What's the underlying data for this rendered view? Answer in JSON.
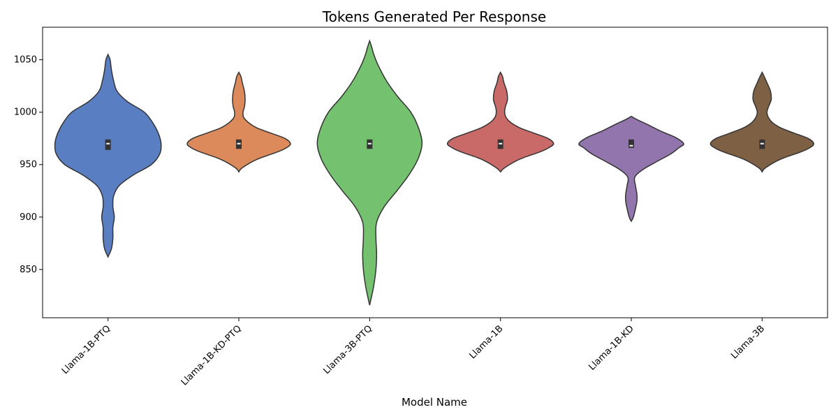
{
  "chart_data": {
    "type": "violin",
    "title": "Tokens Generated Per Response",
    "xlabel": "Model Name",
    "ylabel": "",
    "ylim": [
      804,
      1081
    ],
    "yticks": [
      850,
      900,
      950,
      1000,
      1050
    ],
    "categories": [
      "Llama-1B-PTQ",
      "Llama-1B-KD-PTQ",
      "Llama-3B-PTQ",
      "Llama-1B",
      "Llama-1B-KD",
      "Llama-3B"
    ],
    "colors": [
      "#5a7ec2",
      "#dc8a5c",
      "#74c26f",
      "#c96a69",
      "#9275ad",
      "#7e6045"
    ],
    "violins": [
      {
        "name": "Llama-1B-PTQ",
        "min": 862,
        "max": 1055,
        "box": [
          964,
          974
        ],
        "median": 970,
        "profile": [
          [
            862,
            0
          ],
          [
            870,
            5
          ],
          [
            880,
            7
          ],
          [
            890,
            7
          ],
          [
            900,
            9
          ],
          [
            910,
            7
          ],
          [
            920,
            8
          ],
          [
            930,
            16
          ],
          [
            940,
            36
          ],
          [
            950,
            62
          ],
          [
            960,
            74
          ],
          [
            970,
            76
          ],
          [
            980,
            72
          ],
          [
            990,
            64
          ],
          [
            1000,
            52
          ],
          [
            1010,
            28
          ],
          [
            1020,
            13
          ],
          [
            1030,
            8
          ],
          [
            1040,
            5
          ],
          [
            1050,
            3
          ],
          [
            1055,
            0
          ]
        ]
      },
      {
        "name": "Llama-1B-KD-PTQ",
        "min": 943,
        "max": 1038,
        "box": [
          965,
          974
        ],
        "median": 970,
        "profile": [
          [
            943,
            0
          ],
          [
            947,
            5
          ],
          [
            955,
            26
          ],
          [
            962,
            55
          ],
          [
            966,
            68
          ],
          [
            970,
            74
          ],
          [
            975,
            66
          ],
          [
            980,
            46
          ],
          [
            985,
            26
          ],
          [
            990,
            14
          ],
          [
            995,
            7
          ],
          [
            1000,
            6
          ],
          [
            1005,
            8
          ],
          [
            1012,
            9
          ],
          [
            1020,
            8
          ],
          [
            1028,
            5
          ],
          [
            1034,
            3
          ],
          [
            1038,
            0
          ]
        ]
      },
      {
        "name": "Llama-3B-PTQ",
        "min": 816,
        "max": 1068,
        "box": [
          965,
          974
        ],
        "median": 970,
        "profile": [
          [
            816,
            0
          ],
          [
            825,
            3
          ],
          [
            835,
            6
          ],
          [
            850,
            9
          ],
          [
            865,
            10
          ],
          [
            880,
            9
          ],
          [
            895,
            10
          ],
          [
            910,
            21
          ],
          [
            925,
            39
          ],
          [
            940,
            56
          ],
          [
            955,
            69
          ],
          [
            970,
            75
          ],
          [
            985,
            70
          ],
          [
            1000,
            59
          ],
          [
            1015,
            40
          ],
          [
            1030,
            24
          ],
          [
            1045,
            12
          ],
          [
            1055,
            6
          ],
          [
            1062,
            3
          ],
          [
            1068,
            0
          ]
        ]
      },
      {
        "name": "Llama-1B",
        "min": 943,
        "max": 1038,
        "box": [
          965,
          974
        ],
        "median": 970,
        "profile": [
          [
            943,
            0
          ],
          [
            947,
            6
          ],
          [
            955,
            27
          ],
          [
            962,
            56
          ],
          [
            966,
            69
          ],
          [
            970,
            76
          ],
          [
            975,
            68
          ],
          [
            980,
            48
          ],
          [
            985,
            28
          ],
          [
            990,
            15
          ],
          [
            995,
            8
          ],
          [
            1000,
            6
          ],
          [
            1005,
            7
          ],
          [
            1012,
            10
          ],
          [
            1020,
            9
          ],
          [
            1028,
            5
          ],
          [
            1034,
            3
          ],
          [
            1038,
            0
          ]
        ]
      },
      {
        "name": "Llama-1B-KD",
        "min": 896,
        "max": 996,
        "box": [
          966,
          974
        ],
        "median": 968,
        "profile": [
          [
            896,
            0
          ],
          [
            900,
            3
          ],
          [
            908,
            6
          ],
          [
            915,
            8
          ],
          [
            922,
            8
          ],
          [
            930,
            6
          ],
          [
            938,
            5
          ],
          [
            945,
            16
          ],
          [
            952,
            34
          ],
          [
            960,
            56
          ],
          [
            966,
            68
          ],
          [
            970,
            75
          ],
          [
            976,
            63
          ],
          [
            982,
            42
          ],
          [
            988,
            24
          ],
          [
            993,
            8
          ],
          [
            996,
            0
          ]
        ]
      },
      {
        "name": "Llama-3B",
        "min": 943,
        "max": 1038,
        "box": [
          965,
          974
        ],
        "median": 970,
        "profile": [
          [
            943,
            0
          ],
          [
            947,
            5
          ],
          [
            955,
            26
          ],
          [
            962,
            55
          ],
          [
            966,
            68
          ],
          [
            970,
            74
          ],
          [
            975,
            66
          ],
          [
            980,
            46
          ],
          [
            985,
            27
          ],
          [
            990,
            15
          ],
          [
            995,
            9
          ],
          [
            1000,
            7
          ],
          [
            1005,
            9
          ],
          [
            1012,
            13
          ],
          [
            1020,
            12
          ],
          [
            1028,
            7
          ],
          [
            1034,
            3
          ],
          [
            1038,
            0
          ]
        ]
      }
    ]
  }
}
